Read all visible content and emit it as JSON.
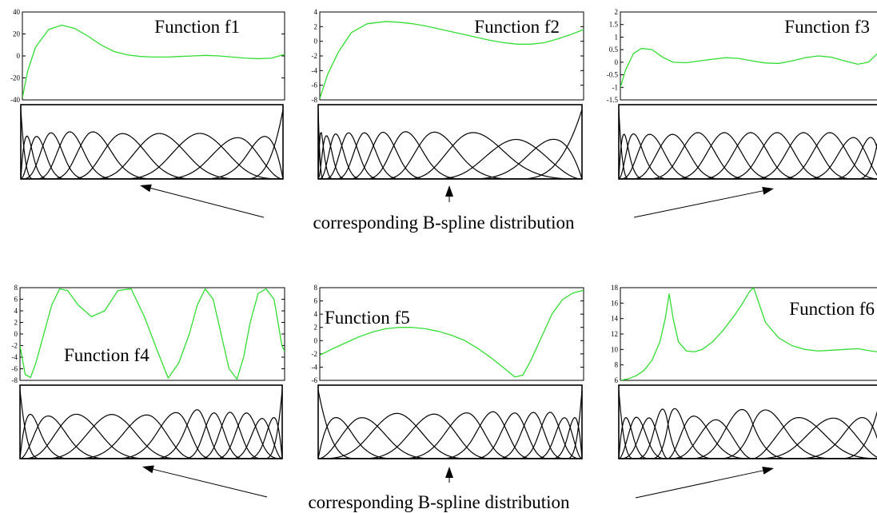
{
  "colors": {
    "curve": "#33dd33",
    "basis": "#000000",
    "axes": "#000000",
    "background": "#ffffff"
  },
  "captions": [
    "corresponding B-spline distribution",
    "corresponding B-spline distribution"
  ],
  "chart_data": [
    {
      "type": "line",
      "title": "Function f1",
      "title_placement": "top-right",
      "xlabel": "",
      "ylabel": "",
      "ylim": [
        -40,
        40
      ],
      "yticks": [
        "40",
        "20",
        "0",
        "-20",
        "-40"
      ],
      "grid": false,
      "series": [
        {
          "x": [
            0,
            0.02,
            0.05,
            0.1,
            0.15,
            0.2,
            0.25,
            0.3,
            0.35,
            0.4,
            0.45,
            0.5,
            0.55,
            0.6,
            0.65,
            0.7,
            0.75,
            0.8,
            0.85,
            0.9,
            0.95,
            1.0
          ],
          "y": [
            -38,
            -14,
            8,
            24,
            28,
            25,
            18,
            10,
            4,
            1,
            -0.5,
            -1,
            -1,
            -0.5,
            0,
            0.5,
            0,
            -1,
            -2,
            -2.5,
            -2,
            1.5
          ]
        }
      ],
      "basis": {
        "knots": [
          0,
          0,
          0,
          0,
          0.05,
          0.11,
          0.18,
          0.26,
          0.37,
          0.52,
          0.68,
          0.85,
          1,
          1,
          1,
          1
        ],
        "description": "cubic B-spline basis functions"
      }
    },
    {
      "type": "line",
      "title": "Function f2",
      "title_placement": "top-right",
      "xlabel": "",
      "ylabel": "",
      "ylim": [
        -8,
        4
      ],
      "yticks": [
        "4",
        "2",
        "0",
        "-2",
        "-4",
        "-6",
        "-8"
      ],
      "grid": false,
      "series": [
        {
          "x": [
            0,
            0.03,
            0.07,
            0.12,
            0.18,
            0.25,
            0.3,
            0.35,
            0.4,
            0.45,
            0.5,
            0.55,
            0.6,
            0.65,
            0.7,
            0.75,
            0.8,
            0.85,
            0.9,
            0.95,
            1.0
          ],
          "y": [
            -7.8,
            -4.5,
            -1.5,
            1.2,
            2.4,
            2.7,
            2.6,
            2.4,
            2.1,
            1.7,
            1.3,
            0.9,
            0.5,
            0.1,
            -0.2,
            -0.4,
            -0.4,
            -0.2,
            0.3,
            0.9,
            1.6
          ]
        }
      ],
      "basis": {
        "knots": [
          0,
          0,
          0,
          0,
          0.02,
          0.06,
          0.11,
          0.17,
          0.24,
          0.32,
          0.42,
          0.56,
          0.75,
          1,
          1,
          1,
          1
        ],
        "description": "cubic B-spline basis functions"
      }
    },
    {
      "type": "line",
      "title": "Function f3",
      "title_placement": "top-right",
      "xlabel": "",
      "ylabel": "",
      "ylim": [
        -1.5,
        2
      ],
      "yticks": [
        "2",
        "1.5",
        "1",
        "0.5",
        "0",
        "-0.5",
        "-1",
        "-1.5"
      ],
      "grid": false,
      "series": [
        {
          "x": [
            0,
            0.02,
            0.05,
            0.08,
            0.12,
            0.16,
            0.2,
            0.25,
            0.3,
            0.35,
            0.4,
            0.45,
            0.5,
            0.55,
            0.6,
            0.65,
            0.7,
            0.75,
            0.8,
            0.85,
            0.9,
            0.94,
            0.97,
            1.0
          ],
          "y": [
            -1.0,
            -0.3,
            0.35,
            0.55,
            0.5,
            0.2,
            0.0,
            -0.02,
            0.05,
            0.12,
            0.18,
            0.15,
            0.05,
            -0.03,
            -0.05,
            0.05,
            0.18,
            0.25,
            0.2,
            0.05,
            -0.08,
            0.0,
            0.3,
            0.6
          ]
        }
      ],
      "basis": {
        "knots": [
          0,
          0,
          0,
          0,
          0.04,
          0.1,
          0.2,
          0.3,
          0.4,
          0.5,
          0.6,
          0.7,
          0.8,
          0.9,
          1,
          1,
          1,
          1
        ],
        "description": "cubic B-spline basis functions"
      }
    },
    {
      "type": "line",
      "title": "Function f4",
      "title_placement": "middle-left",
      "xlabel": "",
      "ylabel": "",
      "ylim": [
        -8,
        8
      ],
      "yticks": [
        "8",
        "6",
        "4",
        "2",
        "0",
        "-2",
        "-4",
        "-6",
        "-8"
      ],
      "grid": false,
      "series": [
        {
          "x": [
            0,
            0.02,
            0.04,
            0.06,
            0.09,
            0.12,
            0.15,
            0.18,
            0.22,
            0.27,
            0.32,
            0.37,
            0.42,
            0.47,
            0.52,
            0.56,
            0.6,
            0.64,
            0.67,
            0.7,
            0.73,
            0.76,
            0.79,
            0.82,
            0.845,
            0.87,
            0.9,
            0.93,
            0.96,
            0.99,
            1.0
          ],
          "y": [
            -2,
            -7,
            -7.5,
            -5,
            0,
            5,
            7.8,
            7.5,
            5,
            3,
            4,
            7.5,
            7.8,
            3,
            -3,
            -7.6,
            -5,
            0,
            5,
            7.8,
            6,
            0,
            -6,
            -7.8,
            -4,
            2,
            7,
            7.8,
            6,
            -2,
            -3
          ]
        }
      ],
      "basis": {
        "knots": [
          0,
          0,
          0,
          0,
          0.08,
          0.2,
          0.35,
          0.5,
          0.62,
          0.68,
          0.74,
          0.8,
          0.86,
          0.93,
          1,
          1,
          1,
          1
        ],
        "description": "cubic B-spline basis functions"
      }
    },
    {
      "type": "line",
      "title": "Function f5",
      "title_placement": "top-left",
      "xlabel": "",
      "ylabel": "",
      "ylim": [
        -6,
        8
      ],
      "yticks": [
        "8",
        "6",
        "4",
        "2",
        "0",
        "-2",
        "-4",
        "-6"
      ],
      "grid": false,
      "series": [
        {
          "x": [
            0,
            0.05,
            0.1,
            0.15,
            0.2,
            0.25,
            0.3,
            0.35,
            0.4,
            0.45,
            0.5,
            0.55,
            0.6,
            0.65,
            0.7,
            0.74,
            0.77,
            0.8,
            0.84,
            0.88,
            0.92,
            0.96,
            1.0
          ],
          "y": [
            -2.2,
            -1.2,
            -0.3,
            0.6,
            1.3,
            1.8,
            2.0,
            2.0,
            1.8,
            1.4,
            0.8,
            0.0,
            -1.2,
            -2.6,
            -4.2,
            -5.5,
            -5.2,
            -3.0,
            0.5,
            4.0,
            6.2,
            7.2,
            7.6
          ]
        }
      ],
      "basis": {
        "knots": [
          0,
          0,
          0,
          0,
          0.15,
          0.3,
          0.45,
          0.58,
          0.67,
          0.75,
          0.82,
          0.88,
          0.94,
          1,
          1,
          1,
          1
        ],
        "description": "cubic B-spline basis functions"
      }
    },
    {
      "type": "line",
      "title": "Function f6",
      "title_placement": "top-right",
      "xlabel": "",
      "ylabel": "",
      "ylim": [
        6,
        18
      ],
      "yticks": [
        "18",
        "16",
        "14",
        "12",
        "10",
        "8",
        "6"
      ],
      "grid": false,
      "series": [
        {
          "x": [
            0,
            0.03,
            0.06,
            0.09,
            0.12,
            0.15,
            0.17,
            0.185,
            0.2,
            0.22,
            0.25,
            0.28,
            0.31,
            0.35,
            0.39,
            0.43,
            0.46,
            0.49,
            0.505,
            0.52,
            0.55,
            0.6,
            0.65,
            0.7,
            0.75,
            0.8,
            0.85,
            0.9,
            0.95,
            1.0
          ],
          "y": [
            6.0,
            6.2,
            6.6,
            7.3,
            8.6,
            11.0,
            14.0,
            17.2,
            14.0,
            11.0,
            9.8,
            9.7,
            10.0,
            11.0,
            12.5,
            14.3,
            15.8,
            17.5,
            18.0,
            16.5,
            13.5,
            11.5,
            10.5,
            10.0,
            9.8,
            9.9,
            10.0,
            10.1,
            9.8,
            9.6
          ]
        }
      ],
      "basis": {
        "knots": [
          0,
          0,
          0,
          0,
          0.06,
          0.12,
          0.185,
          0.185,
          0.26,
          0.37,
          0.505,
          0.505,
          0.66,
          0.83,
          1,
          1,
          1,
          1
        ],
        "description": "cubic B-spline basis functions"
      }
    }
  ]
}
